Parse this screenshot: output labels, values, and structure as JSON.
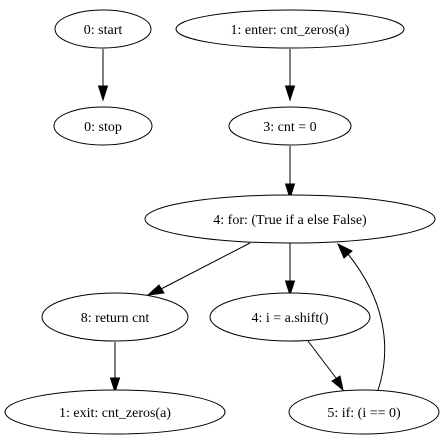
{
  "diagram": {
    "nodes": [
      {
        "id": "start",
        "label": "0: start"
      },
      {
        "id": "stop",
        "label": "0: stop"
      },
      {
        "id": "enter",
        "label": "1: enter: cnt_zeros(a)"
      },
      {
        "id": "assign",
        "label": "3: cnt = 0"
      },
      {
        "id": "for",
        "label": "4: for: (True if a else False)"
      },
      {
        "id": "return",
        "label": "8: return cnt"
      },
      {
        "id": "shift",
        "label": "4: i = a.shift()"
      },
      {
        "id": "exit",
        "label": "1: exit: cnt_zeros(a)"
      },
      {
        "id": "if",
        "label": "5: if: (i == 0)"
      }
    ],
    "edges": [
      {
        "from": "start",
        "to": "stop"
      },
      {
        "from": "enter",
        "to": "assign"
      },
      {
        "from": "assign",
        "to": "for"
      },
      {
        "from": "for",
        "to": "return"
      },
      {
        "from": "for",
        "to": "shift"
      },
      {
        "from": "return",
        "to": "exit"
      },
      {
        "from": "shift",
        "to": "if"
      },
      {
        "from": "if",
        "to": "for"
      }
    ]
  }
}
